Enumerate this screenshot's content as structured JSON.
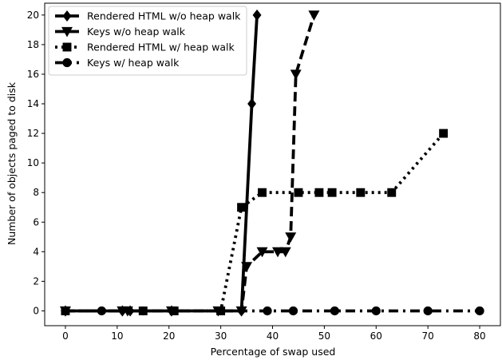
{
  "chart_data": {
    "type": "line",
    "title": "",
    "xlabel": "Percentage of swap used",
    "ylabel": "Number of objects paged to disk",
    "xlim": [
      -4,
      84
    ],
    "ylim": [
      -1,
      20.8
    ],
    "xticks": [
      0,
      10,
      20,
      30,
      40,
      50,
      60,
      70,
      80
    ],
    "yticks": [
      0,
      2,
      4,
      6,
      8,
      10,
      12,
      14,
      16,
      18,
      20
    ],
    "grid": false,
    "legend_position": "upper-left",
    "series": [
      {
        "name": "Rendered HTML w/o heap walk",
        "marker": "diamond",
        "line_style": "solid",
        "color": "#000000",
        "x": [
          0,
          11,
          12.5,
          20.5,
          34,
          36,
          37
        ],
        "y": [
          0,
          0,
          0,
          0,
          0,
          14,
          20
        ]
      },
      {
        "name": "Keys w/o heap walk",
        "marker": "triangle-down",
        "line_style": "dashed",
        "color": "#000000",
        "x": [
          0,
          11,
          12,
          20.5,
          29.5,
          34,
          35,
          38,
          41,
          42.5,
          43.5,
          44.5,
          48
        ],
        "y": [
          0,
          0,
          0,
          0,
          0,
          0,
          3,
          4,
          4,
          4,
          5,
          16,
          20
        ]
      },
      {
        "name": "Rendered HTML w/ heap walk",
        "marker": "square",
        "line_style": "dotted",
        "color": "#000000",
        "x": [
          0,
          15,
          21,
          30,
          34,
          38,
          45,
          49,
          51.5,
          57,
          63,
          73
        ],
        "y": [
          0,
          0,
          0,
          0,
          7,
          8,
          8,
          8,
          8,
          8,
          8,
          12
        ]
      },
      {
        "name": "Keys w/ heap walk",
        "marker": "circle",
        "line_style": "dashdot",
        "color": "#000000",
        "x": [
          0,
          7,
          15,
          30,
          39,
          44,
          52,
          60,
          70,
          80
        ],
        "y": [
          0,
          0,
          0,
          0,
          0,
          0,
          0,
          0,
          0,
          0
        ]
      }
    ]
  }
}
